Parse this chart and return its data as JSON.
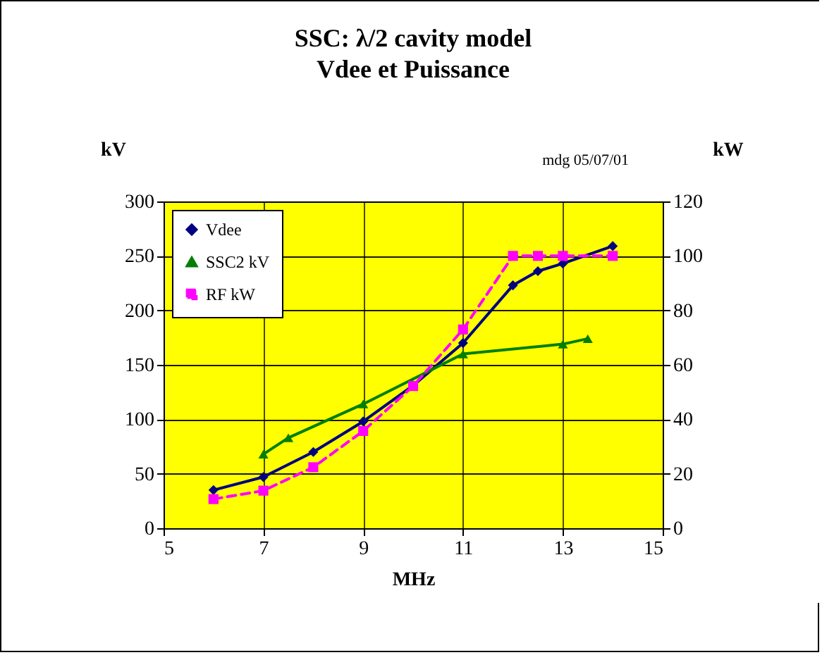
{
  "chart_data": {
    "type": "line",
    "title": "SSC: λ/2 cavity model",
    "subtitle": "Vdee et Puissance",
    "xlabel": "MHz",
    "ylabel": "kV",
    "y2label": "kW",
    "annotations": [
      "mdg 05/07/01"
    ],
    "xlim": [
      5,
      15
    ],
    "xticks": [
      5,
      7,
      9,
      11,
      13,
      15
    ],
    "ylim": [
      0,
      300
    ],
    "yticks": [
      0,
      50,
      100,
      150,
      200,
      250,
      300
    ],
    "y2lim": [
      0,
      120
    ],
    "y2ticks": [
      0,
      20,
      40,
      60,
      80,
      100,
      120
    ],
    "grid": true,
    "legend": "top left",
    "series": [
      {
        "name": "Vdee",
        "color": "#000080",
        "marker": "diamond",
        "line_style": "solid",
        "x": [
          6,
          7,
          8,
          9,
          10,
          11,
          12,
          12.5,
          13,
          14
        ],
        "values": [
          35,
          47,
          70,
          98,
          131,
          170,
          223,
          236,
          243,
          259
        ]
      },
      {
        "name": "SSC2 kV",
        "color": "#007f00",
        "marker": "triangle",
        "line_style": "solid",
        "x": [
          7,
          7.5,
          9,
          11,
          13,
          13.5
        ],
        "values": [
          68,
          83,
          114,
          160,
          169,
          174
        ]
      },
      {
        "name": "RF kW",
        "color": "#ff00ff",
        "marker": "square",
        "line_style": "dashed",
        "axis": "y2",
        "x": [
          6,
          7,
          8,
          9,
          10,
          11,
          12,
          12.5,
          13,
          14
        ],
        "values": [
          10.7,
          13.8,
          22.4,
          35.7,
          52.2,
          73,
          100,
          100,
          100,
          100
        ]
      }
    ]
  }
}
